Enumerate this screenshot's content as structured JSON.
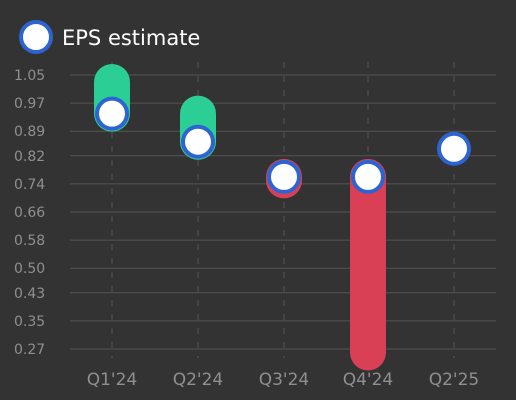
{
  "legend": {
    "label": "EPS estimate",
    "marker_fill": "#ffffff",
    "marker_stroke": "#2d64d2"
  },
  "colors": {
    "background": "#333333",
    "grid": "#555555",
    "beat": "#2bcf95",
    "miss": "#d94055",
    "estimate_fill": "#ffffff",
    "estimate_stroke": "#2d64d2"
  },
  "chart_data": {
    "type": "bar",
    "title": "",
    "xlabel": "",
    "ylabel": "",
    "ylim": [
      0.24,
      1.1
    ],
    "yticks": [
      1.05,
      0.97,
      0.89,
      0.82,
      0.74,
      0.66,
      0.58,
      0.5,
      0.43,
      0.35,
      0.27
    ],
    "ytick_labels": [
      "1.05",
      "0.97",
      "0.89",
      "0.82",
      "0.74",
      "0.66",
      "0.58",
      "0.50",
      "0.43",
      "0.35",
      "0.27"
    ],
    "categories": [
      "Q1'24",
      "Q2'24",
      "Q3'24",
      "Q4'24",
      "Q2'25"
    ],
    "series": [
      {
        "name": "EPS estimate",
        "values": [
          0.94,
          0.86,
          0.76,
          0.76,
          0.84
        ]
      }
    ],
    "actual": [
      1.03,
      0.94,
      0.75,
      0.26,
      null
    ],
    "grid": true,
    "legend_position": "top-left"
  }
}
